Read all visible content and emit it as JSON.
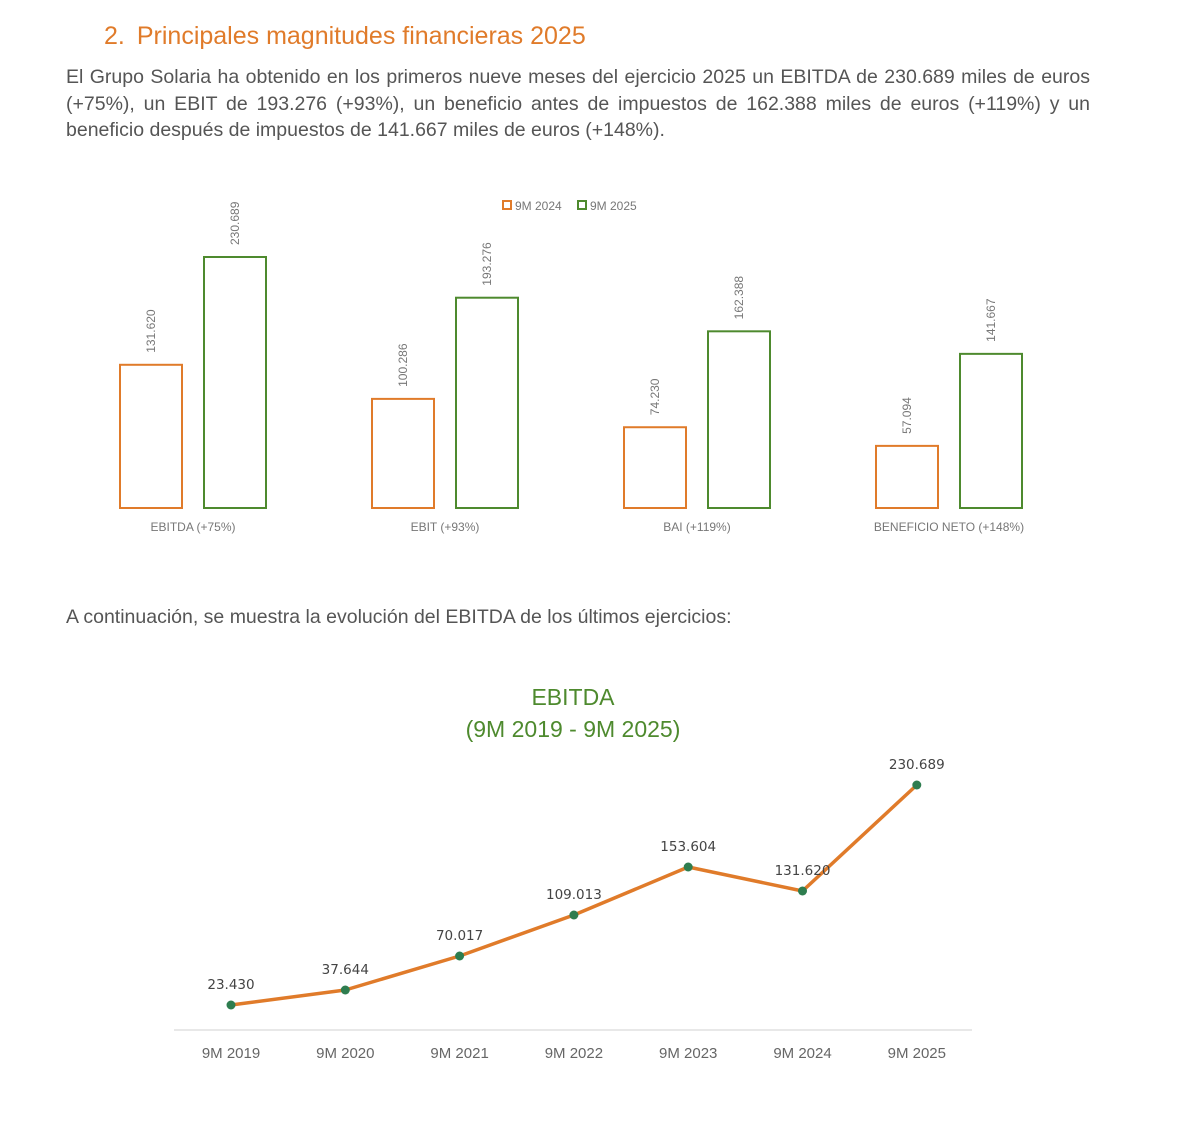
{
  "section": {
    "number": "2.",
    "title": "Principales magnitudes financieras 2025",
    "intro": "El Grupo Solaria ha obtenido en los primeros nueve meses del ejercicio 2025 un EBITDA de 230.689 miles de euros (+75%), un EBIT de 193.276 (+93%), un beneficio antes de impuestos de 162.388 miles de euros (+119%) y un beneficio después de impuestos de 141.667 miles de euros (+148%).",
    "continuation": "A continuación, se muestra la evolución del EBITDA de los últimos ejercicios:"
  },
  "colors": {
    "orange": "#E07B2A",
    "green": "#4E8A2E",
    "dot": "#2E7D4F"
  },
  "chart_data": [
    {
      "type": "bar",
      "title": "",
      "legend_position": "top-center",
      "categories": [
        "EBITDA (+75%)",
        "EBIT (+93%)",
        "BAI (+119%)",
        "BENEFICIO NETO (+148%)"
      ],
      "series": [
        {
          "name": "9M 2024",
          "values": [
            131620,
            100286,
            74230,
            57094
          ],
          "labels": [
            "131.620",
            "100.286",
            "74.230",
            "57.094"
          ]
        },
        {
          "name": "9M 2025",
          "values": [
            230689,
            193276,
            162388,
            141667
          ],
          "labels": [
            "230.689",
            "193.276",
            "162.388",
            "141.667"
          ]
        }
      ],
      "ylim": [
        0,
        230689
      ]
    },
    {
      "type": "line",
      "title": "EBITDA",
      "subtitle": "(9M 2019 - 9M 2025)",
      "categories": [
        "9M 2019",
        "9M 2020",
        "9M 2021",
        "9M 2022",
        "9M 2023",
        "9M 2024",
        "9M 2025"
      ],
      "values": [
        23430,
        37644,
        70017,
        109013,
        153604,
        131620,
        230689
      ],
      "labels": [
        "23.430",
        "37.644",
        "70.017",
        "109.013",
        "153.604",
        "131.620",
        "230.689"
      ],
      "ylim": [
        0,
        230689
      ]
    }
  ]
}
